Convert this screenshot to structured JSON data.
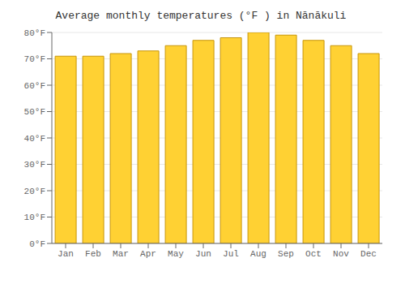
{
  "chart_data": {
    "type": "bar",
    "title": "Average monthly temperatures (°F ) in Nānākuli",
    "categories": [
      "Jan",
      "Feb",
      "Mar",
      "Apr",
      "May",
      "Jun",
      "Jul",
      "Aug",
      "Sep",
      "Oct",
      "Nov",
      "Dec"
    ],
    "values": [
      71,
      71,
      72,
      73,
      75,
      77,
      78,
      80,
      79,
      77,
      75,
      72
    ],
    "color": "#FFD133",
    "ylim": [
      0,
      80
    ],
    "yticks": [
      {
        "value": 0,
        "label": "0°F"
      },
      {
        "value": 10,
        "label": "10°F"
      },
      {
        "value": 20,
        "label": "20°F"
      },
      {
        "value": 30,
        "label": "30°F"
      },
      {
        "value": 40,
        "label": "40°F"
      },
      {
        "value": 50,
        "label": "50°F"
      },
      {
        "value": 60,
        "label": "60°F"
      },
      {
        "value": 70,
        "label": "70°F"
      },
      {
        "value": 80,
        "label": "80°F"
      }
    ],
    "grid": true
  }
}
